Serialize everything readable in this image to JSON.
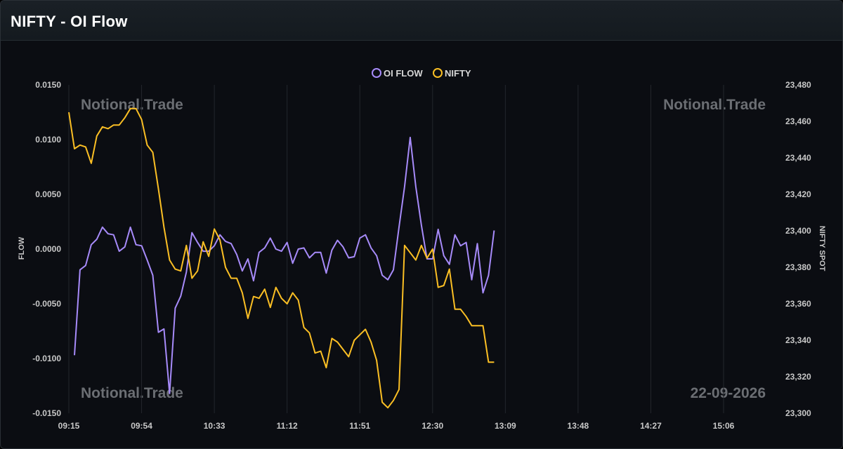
{
  "header": {
    "title": "NIFTY - OI Flow"
  },
  "watermarks": {
    "brand": "Notional.Trade",
    "date": "22-09-2026"
  },
  "colors": {
    "oi_flow": "#a78bfa",
    "nifty": "#fbbf24",
    "grid": "#23262c",
    "background": "#0b0d12"
  },
  "chart_data": {
    "type": "line",
    "title": "NIFTY - OI Flow",
    "legend": {
      "placement": "top-center",
      "items": [
        "OI FLOW",
        "NIFTY"
      ]
    },
    "x_ticks": [
      "09:15",
      "09:54",
      "10:33",
      "11:12",
      "11:51",
      "12:30",
      "13:09",
      "13:48",
      "14:27",
      "15:06"
    ],
    "x_start": "09:15",
    "x_step_minutes": 3,
    "y_left": {
      "label": "FLOW",
      "range": [
        -0.015,
        0.015
      ],
      "ticks": [
        "0.0150",
        "0.0100",
        "0.0050",
        "0.0000",
        "-0.0050",
        "-0.0100",
        "-0.0150"
      ]
    },
    "y_right": {
      "label": "NIFTY SPOT",
      "range": [
        23300,
        23480
      ],
      "ticks": [
        "23,480",
        "23,460",
        "23,440",
        "23,420",
        "23,400",
        "23,380",
        "23,360",
        "23,340",
        "23,320",
        "23,300"
      ]
    },
    "grid": {
      "vertical": true,
      "horizontal": false
    },
    "series": [
      {
        "name": "OI FLOW",
        "axis": "left",
        "start_minutes": 3,
        "values": [
          -0.0097,
          -0.0019,
          -0.0015,
          0.0004,
          0.0009,
          0.002,
          0.0014,
          0.0013,
          -0.0002,
          0.0002,
          0.002,
          0.0004,
          0.0003,
          -0.001,
          -0.0024,
          -0.0076,
          -0.0073,
          -0.0132,
          -0.0054,
          -0.0043,
          -0.0021,
          0.0015,
          0.0006,
          -0.0002,
          -0.0002,
          0.0003,
          0.0013,
          0.0007,
          0.0005,
          -0.0005,
          -0.002,
          -0.0009,
          -0.0029,
          -0.0003,
          0.0001,
          0.001,
          0.0,
          -0.0002,
          0.0006,
          -0.0013,
          0.0,
          0.0001,
          -0.0008,
          -0.0003,
          -0.0003,
          -0.0022,
          -0.0001,
          0.0008,
          0.0002,
          -0.0008,
          -0.0007,
          0.001,
          0.0013,
          0.0001,
          -0.0006,
          -0.0024,
          -0.0028,
          -0.0019,
          0.002,
          0.0057,
          0.0102,
          0.0057,
          0.0022,
          -0.0009,
          -0.0009,
          0.0018,
          -0.0006,
          -0.0014,
          0.0013,
          0.0003,
          0.0006,
          -0.0028,
          0.0005,
          -0.004,
          -0.0024,
          0.0017
        ]
      },
      {
        "name": "NIFTY",
        "axis": "right",
        "start_minutes": 0,
        "values": [
          23465,
          23445,
          23447,
          23446,
          23437,
          23452,
          23457,
          23456,
          23458,
          23458,
          23462,
          23467,
          23467,
          23461,
          23447,
          23443,
          23423,
          23402,
          23384,
          23379,
          23378,
          23392,
          23374,
          23378,
          23394,
          23386,
          23401,
          23395,
          23380,
          23374,
          23374,
          23366,
          23352,
          23364,
          23363,
          23368,
          23358,
          23369,
          23363,
          23360,
          23366,
          23362,
          23347,
          23344,
          23333,
          23334,
          23325,
          23341,
          23339,
          23335,
          23331,
          23340,
          23343,
          23346,
          23339,
          23329,
          23306,
          23303,
          23307,
          23313,
          23392,
          23388,
          23384,
          23392,
          23385,
          23390,
          23369,
          23370,
          23379,
          23357,
          23357,
          23353,
          23348,
          23348,
          23348,
          23328,
          23328
        ]
      }
    ]
  }
}
